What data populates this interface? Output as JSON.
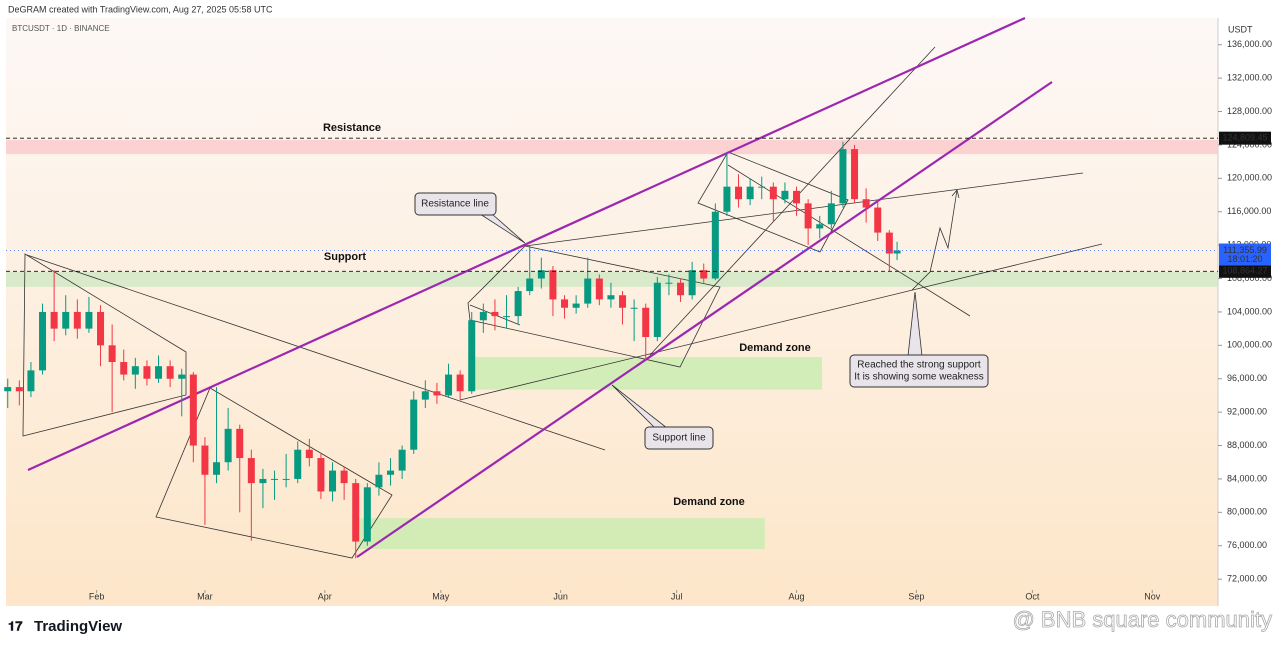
{
  "header": {
    "credit": "DeGRAM created with TradingView.com, Aug 27, 2025 05:58 UTC",
    "symbol": "BTCUSDT · 1D · BINANCE"
  },
  "chart_data": {
    "type": "candlestick",
    "currency": "USDT",
    "xlim": [
      6,
      321
    ],
    "ylim": [
      70700,
      139200
    ],
    "xticks": [
      {
        "value": 31,
        "label": "Feb"
      },
      {
        "value": 59,
        "label": "Mar"
      },
      {
        "value": 90,
        "label": "Apr"
      },
      {
        "value": 120,
        "label": "May"
      },
      {
        "value": 151,
        "label": "Jun"
      },
      {
        "value": 181,
        "label": "Jul"
      },
      {
        "value": 212,
        "label": "Aug"
      },
      {
        "value": 243,
        "label": "Sep"
      },
      {
        "value": 273,
        "label": "Oct"
      },
      {
        "value": 304,
        "label": "Nov"
      }
    ],
    "yticks": [
      {
        "value": 72000,
        "label": "72,000.00"
      },
      {
        "value": 76000,
        "label": "76,000.00"
      },
      {
        "value": 80000,
        "label": "80,000.00"
      },
      {
        "value": 84000,
        "label": "84,000.00"
      },
      {
        "value": 88000,
        "label": "88,000.00"
      },
      {
        "value": 92000,
        "label": "92,000.00"
      },
      {
        "value": 96000,
        "label": "96,000.00"
      },
      {
        "value": 100000,
        "label": "100,000.00"
      },
      {
        "value": 104000,
        "label": "104,000.00"
      },
      {
        "value": 108000,
        "label": "108,000.00"
      },
      {
        "value": 112000,
        "label": "112,000.00"
      },
      {
        "value": 116000,
        "label": "116,000.00"
      },
      {
        "value": 120000,
        "label": "120,000.00"
      },
      {
        "value": 124000,
        "label": "124,000.00"
      },
      {
        "value": 128000,
        "label": "128,000.00"
      },
      {
        "value": 132000,
        "label": "132,000.00"
      },
      {
        "value": 136000,
        "label": "136,000.00"
      }
    ],
    "grid": false,
    "up_color": "#089981",
    "down_color": "#f23645",
    "candles": [
      [
        8,
        94500,
        96000,
        92500,
        95000
      ],
      [
        11,
        95000,
        95800,
        92800,
        94500
      ],
      [
        14,
        94500,
        98000,
        93800,
        97000
      ],
      [
        17,
        97000,
        105000,
        96500,
        104000
      ],
      [
        20,
        104000,
        109000,
        100500,
        102000
      ],
      [
        23,
        102000,
        106000,
        101200,
        104000
      ],
      [
        26,
        104000,
        105500,
        100800,
        102000
      ],
      [
        29,
        102000,
        105800,
        101500,
        104000
      ],
      [
        32,
        104000,
        104800,
        97500,
        100000
      ],
      [
        35,
        100000,
        102500,
        92000,
        98000
      ],
      [
        38,
        98000,
        99500,
        95800,
        96500
      ],
      [
        41,
        96500,
        98500,
        94800,
        97500
      ],
      [
        44,
        97500,
        98200,
        95200,
        96000
      ],
      [
        47,
        96000,
        98800,
        95500,
        97500
      ],
      [
        50,
        97500,
        98200,
        95000,
        96000
      ],
      [
        53,
        96000,
        97200,
        91500,
        96500
      ],
      [
        56,
        96500,
        96800,
        86000,
        88000
      ],
      [
        59,
        88000,
        89000,
        78500,
        84500
      ],
      [
        62,
        84500,
        95000,
        83500,
        86000
      ],
      [
        65,
        86000,
        92500,
        85000,
        90000
      ],
      [
        68,
        90000,
        90500,
        80000,
        86500
      ],
      [
        71,
        86500,
        87500,
        76600,
        83500
      ],
      [
        74,
        83500,
        85200,
        80500,
        84000
      ],
      [
        77,
        84000,
        85000,
        81500,
        84000
      ],
      [
        80,
        84000,
        87000,
        83000,
        84000
      ],
      [
        83,
        84000,
        88500,
        83500,
        87500
      ],
      [
        86,
        87500,
        88800,
        85500,
        86500
      ],
      [
        89,
        86500,
        87000,
        81600,
        82500
      ],
      [
        92,
        82500,
        86000,
        81300,
        85000
      ],
      [
        95,
        85000,
        85500,
        81500,
        83500
      ],
      [
        98,
        83500,
        84000,
        74500,
        76500
      ],
      [
        101,
        76500,
        83500,
        76000,
        83000
      ],
      [
        104,
        83000,
        86000,
        82000,
        84500
      ],
      [
        107,
        84500,
        86500,
        83200,
        85000
      ],
      [
        110,
        85000,
        88000,
        84000,
        87500
      ],
      [
        113,
        87500,
        94500,
        87000,
        93500
      ],
      [
        116,
        93500,
        95800,
        92500,
        94500
      ],
      [
        119,
        94500,
        95500,
        93000,
        94000
      ],
      [
        122,
        94000,
        97800,
        93800,
        96500
      ],
      [
        125,
        96500,
        97000,
        93500,
        94500
      ],
      [
        128,
        94500,
        104000,
        94200,
        103000
      ],
      [
        131,
        103000,
        105000,
        101500,
        104000
      ],
      [
        134,
        104000,
        105500,
        101800,
        103500
      ],
      [
        137,
        103500,
        106000,
        102000,
        103500
      ],
      [
        140,
        103500,
        107000,
        102500,
        106500
      ],
      [
        143,
        106500,
        111900,
        106000,
        108000
      ],
      [
        146,
        108000,
        110500,
        106800,
        109000
      ],
      [
        149,
        109000,
        109500,
        103500,
        105500
      ],
      [
        152,
        105500,
        106000,
        103200,
        104500
      ],
      [
        155,
        104500,
        106000,
        103800,
        105000
      ],
      [
        158,
        105000,
        110500,
        104500,
        108000
      ],
      [
        161,
        108000,
        108500,
        104800,
        105500
      ],
      [
        164,
        105500,
        107500,
        104500,
        106000
      ],
      [
        167,
        106000,
        106500,
        102500,
        104500
      ],
      [
        170,
        104500,
        105500,
        100500,
        104500
      ],
      [
        173,
        104500,
        105000,
        98200,
        101000
      ],
      [
        176,
        101000,
        108200,
        100500,
        107500
      ],
      [
        179,
        107500,
        108500,
        106000,
        107500
      ],
      [
        182,
        107500,
        108000,
        105200,
        106000
      ],
      [
        185,
        106000,
        110000,
        105500,
        109000
      ],
      [
        188,
        109000,
        109800,
        107500,
        108000
      ],
      [
        191,
        108000,
        117000,
        107800,
        116000
      ],
      [
        194,
        116000,
        123000,
        115500,
        119000
      ],
      [
        197,
        119000,
        120500,
        116500,
        117500
      ],
      [
        200,
        117500,
        120000,
        116800,
        119000
      ],
      [
        203,
        119000,
        120200,
        117500,
        119000
      ],
      [
        206,
        119000,
        119500,
        114800,
        117500
      ],
      [
        209,
        117500,
        119500,
        117000,
        118500
      ],
      [
        212,
        118500,
        119000,
        115500,
        117000
      ],
      [
        215,
        117000,
        117500,
        112000,
        114000
      ],
      [
        218,
        114000,
        115500,
        112800,
        114500
      ],
      [
        221,
        114500,
        118500,
        114000,
        117000
      ],
      [
        224,
        117000,
        124400,
        116500,
        123500
      ],
      [
        227,
        123500,
        124000,
        117000,
        117500
      ],
      [
        230,
        117500,
        118800,
        114700,
        116500
      ],
      [
        233,
        116500,
        117300,
        112500,
        113500
      ],
      [
        236,
        113500,
        113800,
        108900,
        111000
      ],
      [
        238,
        111000,
        112400,
        110200,
        111355.99
      ]
    ],
    "price_lines": [
      {
        "value": 124809.45,
        "label": "124,809.45"
      },
      {
        "value": 108864.27,
        "label": "108,864.27"
      }
    ],
    "last_price": {
      "value": 111355.99,
      "label": "111,355.99",
      "countdown": "18:01:20"
    },
    "zones": [
      {
        "label": "Resistance",
        "ylim": [
          122900,
          124600
        ],
        "color": "#fbc8cc"
      },
      {
        "label": "Support",
        "ylim": [
          107000,
          108800
        ],
        "color": "#cfe8c4"
      },
      {
        "label": "Demand zone",
        "ylim": [
          94700,
          98600
        ],
        "xrange": [
          127,
          218.6
        ],
        "color": "#c8ecb0"
      },
      {
        "label": "Demand zone",
        "ylim": [
          75600,
          79300
        ],
        "xrange": [
          98.6,
          203.8
        ],
        "color": "#c8ecb0"
      }
    ],
    "annotations": {
      "resistance_line": "Resistance line",
      "support_line": "Support line",
      "note_1": "Reached the strong support",
      "note_2": "It is showing some weakness"
    }
  },
  "footer": {
    "logo": "TradingView",
    "watermark": "@ BNB square community"
  }
}
